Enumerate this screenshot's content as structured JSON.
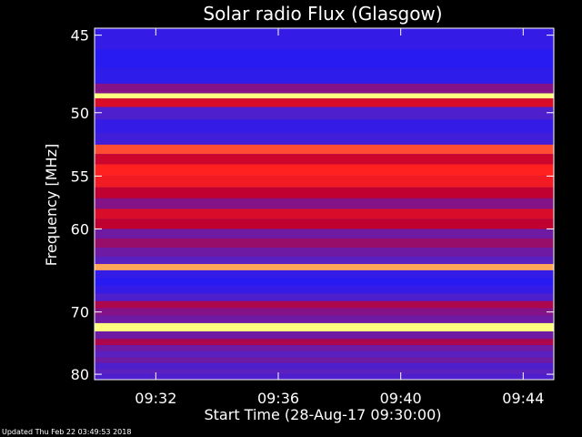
{
  "chart_data": {
    "type": "heatmap",
    "title": "Solar radio Flux (Glasgow)",
    "xlabel": "Start Time (28-Aug-17 09:30:00)",
    "ylabel": "Frequency [MHz]",
    "x_ticks": [
      "09:32",
      "09:36",
      "09:40",
      "09:44"
    ],
    "x_tick_minutes": [
      2,
      6,
      10,
      14
    ],
    "x_range_minutes": [
      0,
      15
    ],
    "y_ticks": [
      45,
      50,
      55,
      60,
      70,
      80
    ],
    "y_range_mhz": [
      44.6,
      81
    ],
    "y_scale": "reciprocal",
    "colormap": [
      "#1a1aff",
      "#5a20c0",
      "#c00030",
      "#ff2020",
      "#ffff80"
    ],
    "bands": [
      {
        "f": 45.2,
        "level": 0.1
      },
      {
        "f": 46.5,
        "level": 0.05
      },
      {
        "f": 47.5,
        "level": 0.08
      },
      {
        "f": 48.5,
        "level": 0.35
      },
      {
        "f": 48.8,
        "level": 1.0
      },
      {
        "f": 49.2,
        "level": 0.6
      },
      {
        "f": 50.0,
        "level": 0.2
      },
      {
        "f": 51.0,
        "level": 0.1
      },
      {
        "f": 52.0,
        "level": 0.15
      },
      {
        "f": 52.8,
        "level": 0.8
      },
      {
        "f": 53.5,
        "level": 0.55
      },
      {
        "f": 54.5,
        "level": 0.75
      },
      {
        "f": 55.5,
        "level": 0.7
      },
      {
        "f": 56.5,
        "level": 0.5
      },
      {
        "f": 57.5,
        "level": 0.35
      },
      {
        "f": 58.5,
        "level": 0.6
      },
      {
        "f": 59.5,
        "level": 0.5
      },
      {
        "f": 60.5,
        "level": 0.3
      },
      {
        "f": 61.5,
        "level": 0.4
      },
      {
        "f": 62.5,
        "level": 0.3
      },
      {
        "f": 63.5,
        "level": 0.25
      },
      {
        "f": 64.2,
        "level": 0.9
      },
      {
        "f": 65.0,
        "level": 0.1
      },
      {
        "f": 66.0,
        "level": 0.05
      },
      {
        "f": 67.0,
        "level": 0.1
      },
      {
        "f": 68.0,
        "level": 0.2
      },
      {
        "f": 69.0,
        "level": 0.45
      },
      {
        "f": 70.0,
        "level": 0.35
      },
      {
        "f": 71.0,
        "level": 0.3
      },
      {
        "f": 72.2,
        "level": 1.0
      },
      {
        "f": 73.5,
        "level": 0.3
      },
      {
        "f": 74.5,
        "level": 0.45
      },
      {
        "f": 75.5,
        "level": 0.3
      },
      {
        "f": 76.5,
        "level": 0.25
      },
      {
        "f": 77.5,
        "level": 0.3
      },
      {
        "f": 78.5,
        "level": 0.2
      },
      {
        "f": 79.5,
        "level": 0.25
      },
      {
        "f": 80.5,
        "level": 0.2
      }
    ]
  },
  "footer": "Updated Thu Feb 22 03:49:53 2018"
}
